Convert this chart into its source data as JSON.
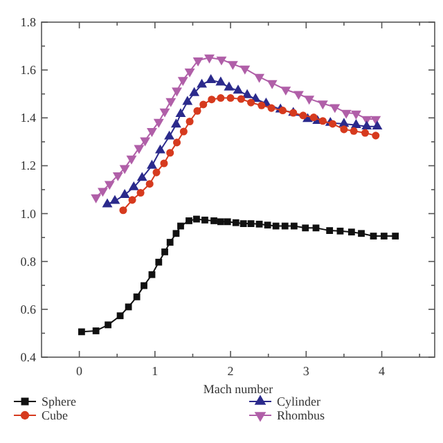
{
  "chart_data": {
    "type": "line",
    "xlabel": "Mach number",
    "xlim": [
      -0.5,
      4.7
    ],
    "ylim": [
      0.4,
      1.8
    ],
    "xticks": [
      0,
      {
        "value": 0.5,
        "label": null
      },
      1,
      {
        "value": 1.5,
        "label": null
      },
      2,
      {
        "value": 2.5,
        "label": null
      },
      3,
      {
        "value": 3.5,
        "label": null
      },
      4,
      {
        "value": 4.5,
        "label": null
      }
    ],
    "yticks": [
      {
        "value": 0.4,
        "label": "0.4"
      },
      {
        "value": 0.5,
        "label": null
      },
      {
        "value": 0.6,
        "label": "0.6"
      },
      {
        "value": 0.7,
        "label": null
      },
      {
        "value": 0.8,
        "label": "0.8"
      },
      {
        "value": 0.9,
        "label": null
      },
      {
        "value": 1.0,
        "label": "1.0"
      },
      {
        "value": 1.1,
        "label": null
      },
      1.2,
      {
        "value": 1.3,
        "label": null
      },
      1.4,
      {
        "value": 1.5,
        "label": null
      },
      1.6,
      {
        "value": 1.7,
        "label": null
      },
      1.8
    ],
    "grid": false,
    "legend": "bottom",
    "line_style": "solid",
    "series": [
      {
        "name": "Sphere",
        "color": "#111111",
        "marker": "square",
        "x": [
          0.03,
          0.22,
          0.38,
          0.54,
          0.65,
          0.76,
          0.855,
          0.96,
          1.05,
          1.13,
          1.2,
          1.28,
          1.34,
          1.45,
          1.55,
          1.66,
          1.78,
          1.87,
          1.96,
          2.07,
          2.17,
          2.27,
          2.38,
          2.49,
          2.6,
          2.72,
          2.84,
          2.99,
          3.13,
          3.31,
          3.45,
          3.6,
          3.73,
          3.89,
          4.03,
          4.18
        ],
        "values": [
          0.506,
          0.51,
          0.535,
          0.573,
          0.61,
          0.652,
          0.699,
          0.745,
          0.797,
          0.84,
          0.88,
          0.917,
          0.948,
          0.97,
          0.977,
          0.973,
          0.97,
          0.966,
          0.966,
          0.962,
          0.958,
          0.958,
          0.956,
          0.952,
          0.948,
          0.948,
          0.948,
          0.94,
          0.94,
          0.929,
          0.927,
          0.923,
          0.917,
          0.906,
          0.906,
          0.906
        ]
      },
      {
        "name": "Cube",
        "color": "#d63a1e",
        "marker": "circle",
        "x": [
          0.58,
          0.7,
          0.81,
          0.93,
          1.02,
          1.12,
          1.2,
          1.29,
          1.38,
          1.46,
          1.56,
          1.64,
          1.75,
          1.87,
          2.0,
          2.14,
          2.27,
          2.41,
          2.54,
          2.69,
          2.83,
          2.96,
          3.1,
          3.22,
          3.35,
          3.5,
          3.63,
          3.78,
          3.92
        ],
        "values": [
          1.014,
          1.057,
          1.087,
          1.124,
          1.172,
          1.21,
          1.254,
          1.297,
          1.343,
          1.385,
          1.429,
          1.456,
          1.477,
          1.483,
          1.483,
          1.479,
          1.464,
          1.452,
          1.441,
          1.431,
          1.421,
          1.41,
          1.402,
          1.387,
          1.375,
          1.352,
          1.345,
          1.337,
          1.326
        ]
      },
      {
        "name": "Cylinder",
        "color": "#2b2a8c",
        "marker": "triangle",
        "x": [
          0.37,
          0.47,
          0.6,
          0.72,
          0.83,
          0.96,
          1.07,
          1.19,
          1.28,
          1.34,
          1.43,
          1.52,
          1.62,
          1.74,
          1.87,
          1.98,
          2.1,
          2.22,
          2.33,
          2.47,
          2.66,
          2.83,
          3.02,
          3.15,
          3.32,
          3.5,
          3.66,
          3.8,
          3.94
        ],
        "values": [
          1.039,
          1.053,
          1.078,
          1.11,
          1.149,
          1.2,
          1.264,
          1.322,
          1.372,
          1.416,
          1.467,
          1.504,
          1.539,
          1.558,
          1.548,
          1.527,
          1.514,
          1.495,
          1.479,
          1.46,
          1.435,
          1.421,
          1.395,
          1.387,
          1.379,
          1.375,
          1.37,
          1.364,
          1.364
        ]
      },
      {
        "name": "Rhombus",
        "color": "#b05fa8",
        "marker": "triangle-down",
        "x": [
          0.22,
          0.31,
          0.4,
          0.51,
          0.6,
          0.69,
          0.79,
          0.87,
          0.96,
          1.05,
          1.13,
          1.21,
          1.29,
          1.37,
          1.46,
          1.57,
          1.72,
          1.88,
          2.03,
          2.19,
          2.38,
          2.55,
          2.73,
          2.9,
          3.04,
          3.22,
          3.38,
          3.53,
          3.66,
          3.8,
          3.92
        ],
        "values": [
          1.068,
          1.095,
          1.124,
          1.16,
          1.19,
          1.23,
          1.274,
          1.306,
          1.345,
          1.383,
          1.427,
          1.47,
          1.514,
          1.558,
          1.594,
          1.64,
          1.652,
          1.644,
          1.625,
          1.606,
          1.571,
          1.545,
          1.518,
          1.5,
          1.48,
          1.46,
          1.445,
          1.421,
          1.418,
          1.395,
          1.395
        ]
      }
    ]
  }
}
